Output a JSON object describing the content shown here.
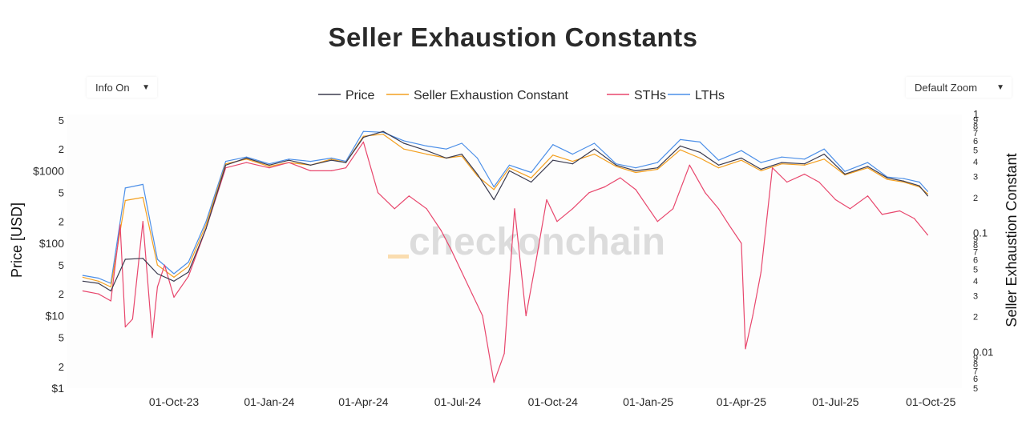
{
  "title": "Seller Exhaustion Constants",
  "controls": {
    "info_label": "Info On",
    "zoom_label": "Default Zoom",
    "arrow": "▼"
  },
  "watermark": "checkonchain",
  "chart_data": {
    "type": "line",
    "title": "Seller Exhaustion Constants",
    "legend_position": "top-center",
    "grid": false,
    "series": [
      {
        "name": "Price",
        "axis": "left",
        "color": "#3b3b4f",
        "x": [
          "2023-07-05",
          "2023-07-20",
          "2023-08-01",
          "2023-08-15",
          "2023-09-01",
          "2023-09-15",
          "2023-10-01",
          "2023-10-15",
          "2023-11-01",
          "2023-11-20",
          "2023-12-10",
          "2024-01-01",
          "2024-01-20",
          "2024-02-10",
          "2024-03-01",
          "2024-03-15",
          "2024-04-01",
          "2024-04-20",
          "2024-05-10",
          "2024-06-01",
          "2024-06-20",
          "2024-07-05",
          "2024-07-20",
          "2024-08-05",
          "2024-08-20",
          "2024-09-10",
          "2024-10-01",
          "2024-10-20",
          "2024-11-10",
          "2024-12-01",
          "2024-12-20",
          "2025-01-10",
          "2025-02-01",
          "2025-02-20",
          "2025-03-10",
          "2025-04-01",
          "2025-04-20",
          "2025-05-10",
          "2025-06-01",
          "2025-06-20",
          "2025-07-10",
          "2025-08-01",
          "2025-08-20",
          "2025-09-05",
          "2025-09-20",
          "2025-09-28"
        ],
        "y": [
          30,
          28,
          22,
          60,
          62,
          38,
          30,
          40,
          160,
          1200,
          1500,
          1200,
          1400,
          1200,
          1400,
          1300,
          2900,
          3500,
          2400,
          1900,
          1500,
          1700,
          900,
          400,
          1000,
          700,
          1400,
          1250,
          2000,
          1200,
          1000,
          1100,
          2200,
          1800,
          1200,
          1500,
          1050,
          1300,
          1250,
          1700,
          900,
          1150,
          800,
          720,
          620,
          450
        ]
      },
      {
        "name": "Seller Exhaustion Constant",
        "axis": "left",
        "color": "#f4a020",
        "x": [
          "2023-07-05",
          "2023-07-20",
          "2023-08-01",
          "2023-08-15",
          "2023-09-01",
          "2023-09-15",
          "2023-10-01",
          "2023-10-15",
          "2023-11-01",
          "2023-11-20",
          "2023-12-10",
          "2024-01-01",
          "2024-01-20",
          "2024-02-10",
          "2024-03-01",
          "2024-03-15",
          "2024-04-01",
          "2024-04-20",
          "2024-05-10",
          "2024-06-01",
          "2024-06-20",
          "2024-07-05",
          "2024-07-20",
          "2024-08-05",
          "2024-08-20",
          "2024-09-10",
          "2024-10-01",
          "2024-10-20",
          "2024-11-10",
          "2024-12-01",
          "2024-12-20",
          "2025-01-10",
          "2025-02-01",
          "2025-02-20",
          "2025-03-10",
          "2025-04-01",
          "2025-04-20",
          "2025-05-10",
          "2025-06-01",
          "2025-06-20",
          "2025-07-10",
          "2025-08-01",
          "2025-08-20",
          "2025-09-05",
          "2025-09-20",
          "2025-09-28"
        ],
        "y": [
          34,
          30,
          25,
          390,
          430,
          50,
          34,
          48,
          180,
          1250,
          1450,
          1150,
          1300,
          1200,
          1450,
          1300,
          3000,
          3200,
          2000,
          1700,
          1500,
          1600,
          850,
          550,
          1100,
          800,
          1650,
          1350,
          1700,
          1150,
          950,
          1050,
          1950,
          1500,
          1100,
          1400,
          1000,
          1250,
          1200,
          1450,
          880,
          1100,
          760,
          700,
          600,
          480
        ]
      },
      {
        "name": "STHs",
        "axis": "left",
        "color": "#e8476d",
        "x": [
          "2023-07-05",
          "2023-07-20",
          "2023-08-01",
          "2023-08-10",
          "2023-08-15",
          "2023-08-22",
          "2023-09-01",
          "2023-09-10",
          "2023-09-15",
          "2023-09-22",
          "2023-10-01",
          "2023-10-15",
          "2023-11-01",
          "2023-11-20",
          "2023-12-10",
          "2024-01-01",
          "2024-01-20",
          "2024-02-10",
          "2024-03-01",
          "2024-03-15",
          "2024-04-01",
          "2024-04-15",
          "2024-05-01",
          "2024-05-15",
          "2024-06-01",
          "2024-06-15",
          "2024-06-25",
          "2024-07-05",
          "2024-07-15",
          "2024-07-25",
          "2024-08-05",
          "2024-08-15",
          "2024-08-25",
          "2024-09-05",
          "2024-09-15",
          "2024-09-25",
          "2024-10-05",
          "2024-10-20",
          "2024-11-05",
          "2024-11-20",
          "2024-12-05",
          "2024-12-20",
          "2025-01-10",
          "2025-01-25",
          "2025-02-10",
          "2025-02-25",
          "2025-03-10",
          "2025-03-20",
          "2025-04-01",
          "2025-04-05",
          "2025-04-12",
          "2025-04-20",
          "2025-05-01",
          "2025-05-15",
          "2025-06-01",
          "2025-06-15",
          "2025-07-01",
          "2025-07-15",
          "2025-08-01",
          "2025-08-15",
          "2025-09-01",
          "2025-09-15",
          "2025-09-28"
        ],
        "y": [
          22,
          20,
          16,
          180,
          7,
          9,
          200,
          5,
          25,
          50,
          18,
          35,
          160,
          1100,
          1300,
          1100,
          1300,
          1000,
          1000,
          1100,
          2500,
          500,
          300,
          450,
          300,
          150,
          80,
          40,
          20,
          10,
          1.2,
          3,
          300,
          10,
          60,
          400,
          200,
          300,
          500,
          600,
          800,
          550,
          200,
          300,
          1200,
          500,
          300,
          180,
          100,
          3.5,
          10,
          40,
          1100,
          700,
          900,
          700,
          400,
          300,
          450,
          250,
          280,
          220,
          130
        ]
      },
      {
        "name": "LTHs",
        "axis": "left",
        "color": "#4c8fe8",
        "x": [
          "2023-07-05",
          "2023-07-20",
          "2023-08-01",
          "2023-08-15",
          "2023-09-01",
          "2023-09-15",
          "2023-10-01",
          "2023-10-15",
          "2023-11-01",
          "2023-11-20",
          "2023-12-10",
          "2024-01-01",
          "2024-01-20",
          "2024-02-10",
          "2024-03-01",
          "2024-03-15",
          "2024-04-01",
          "2024-04-20",
          "2024-05-10",
          "2024-06-01",
          "2024-06-20",
          "2024-07-05",
          "2024-07-20",
          "2024-08-05",
          "2024-08-20",
          "2024-09-10",
          "2024-10-01",
          "2024-10-20",
          "2024-11-10",
          "2024-12-01",
          "2024-12-20",
          "2025-01-10",
          "2025-02-01",
          "2025-02-20",
          "2025-03-10",
          "2025-04-01",
          "2025-04-20",
          "2025-05-10",
          "2025-06-01",
          "2025-06-20",
          "2025-07-10",
          "2025-08-01",
          "2025-08-20",
          "2025-09-05",
          "2025-09-20",
          "2025-09-28"
        ],
        "y": [
          36,
          33,
          28,
          580,
          650,
          60,
          38,
          55,
          200,
          1350,
          1550,
          1250,
          1450,
          1350,
          1500,
          1350,
          3500,
          3400,
          2600,
          2200,
          2000,
          2400,
          1500,
          600,
          1200,
          950,
          2300,
          1700,
          2400,
          1250,
          1100,
          1300,
          2700,
          2500,
          1400,
          1900,
          1300,
          1550,
          1450,
          2000,
          980,
          1300,
          820,
          780,
          700,
          520
        ]
      }
    ],
    "xlabel": "",
    "x_ticks": [
      "01-Oct-23",
      "01-Jan-24",
      "01-Apr-24",
      "01-Jul-24",
      "01-Oct-24",
      "01-Jan-25",
      "01-Apr-25",
      "01-Jul-25",
      "01-Oct-25"
    ],
    "x_range": [
      "2023-06-20",
      "2025-10-31"
    ],
    "y_left": {
      "label": "Price [USD]",
      "scale": "log",
      "range": [
        1,
        6000
      ],
      "ticks": [
        {
          "v": 1,
          "t": "$1",
          "major": true
        },
        {
          "v": 2,
          "t": "2"
        },
        {
          "v": 5,
          "t": "5"
        },
        {
          "v": 10,
          "t": "$10",
          "major": true
        },
        {
          "v": 20,
          "t": "2"
        },
        {
          "v": 50,
          "t": "5"
        },
        {
          "v": 100,
          "t": "$100",
          "major": true
        },
        {
          "v": 200,
          "t": "2"
        },
        {
          "v": 500,
          "t": "5"
        },
        {
          "v": 1000,
          "t": "$1000",
          "major": true
        },
        {
          "v": 2000,
          "t": "2"
        },
        {
          "v": 5000,
          "t": "5"
        }
      ]
    },
    "y_right": {
      "label": "Seller Exhaustion Constant",
      "scale": "log",
      "range": [
        0.005,
        1.0
      ],
      "ticks": [
        {
          "v": 0.005,
          "t": "5"
        },
        {
          "v": 0.006,
          "t": "6"
        },
        {
          "v": 0.007,
          "t": "7"
        },
        {
          "v": 0.008,
          "t": "8"
        },
        {
          "v": 0.009,
          "t": "9"
        },
        {
          "v": 0.01,
          "t": "0.01",
          "major": true
        },
        {
          "v": 0.02,
          "t": "2"
        },
        {
          "v": 0.03,
          "t": "3"
        },
        {
          "v": 0.04,
          "t": "4"
        },
        {
          "v": 0.05,
          "t": "5"
        },
        {
          "v": 0.06,
          "t": "6"
        },
        {
          "v": 0.07,
          "t": "7"
        },
        {
          "v": 0.08,
          "t": "8"
        },
        {
          "v": 0.09,
          "t": "9"
        },
        {
          "v": 0.1,
          "t": "0.1",
          "major": true
        },
        {
          "v": 0.2,
          "t": "2"
        },
        {
          "v": 0.3,
          "t": "3"
        },
        {
          "v": 0.4,
          "t": "4"
        },
        {
          "v": 0.5,
          "t": "5"
        },
        {
          "v": 0.6,
          "t": "6"
        },
        {
          "v": 0.7,
          "t": "7"
        },
        {
          "v": 0.8,
          "t": "8"
        },
        {
          "v": 0.9,
          "t": "9"
        },
        {
          "v": 1.0,
          "t": "1",
          "major": true
        }
      ]
    }
  }
}
